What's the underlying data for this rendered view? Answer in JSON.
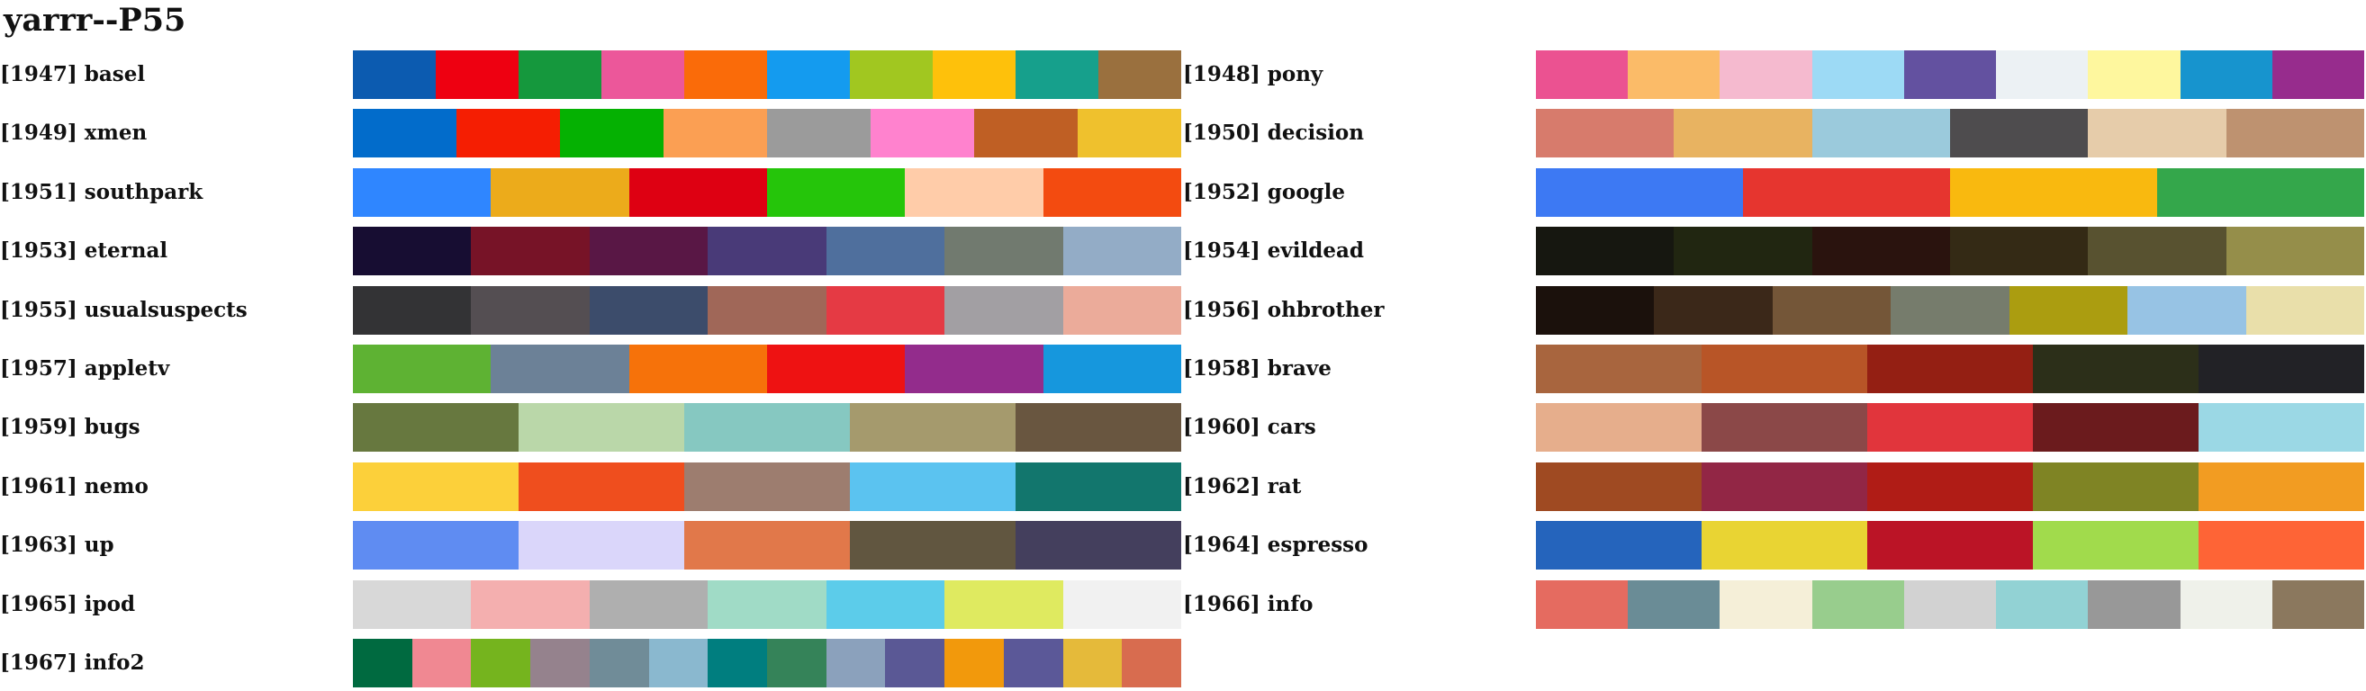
{
  "title": "yarrr--P55",
  "palettes": [
    {
      "label": "[1947] basel",
      "colors": [
        "#0C5BB0",
        "#EE0011",
        "#15983D",
        "#EC579A",
        "#FA6B09",
        "#149BEF",
        "#A1C720",
        "#FEC10B",
        "#16A08C",
        "#9A703E"
      ]
    },
    {
      "label": "[1948] pony",
      "colors": [
        "#EB5291",
        "#FBBB68",
        "#F5BACF",
        "#9DDAF5",
        "#6351A0",
        "#ECF1F4",
        "#FEF79E",
        "#1794CE",
        "#972C8D"
      ]
    },
    {
      "label": "[1949] xmen",
      "colors": [
        "#026CCB",
        "#F51E02",
        "#05B102",
        "#FB9F53",
        "#9B9B9B",
        "#FF82CE",
        "#BF5F24",
        "#EFC12D"
      ]
    },
    {
      "label": "[1950] decision",
      "colors": [
        "#D77B6C",
        "#E8B361",
        "#9BCADC",
        "#4E4C4E",
        "#E6CCAA",
        "#BE9270"
      ]
    },
    {
      "label": "[1951] southpark",
      "colors": [
        "#2F86FF",
        "#ECAB1B",
        "#DE0012",
        "#25C50A",
        "#FFCCA9",
        "#F34B10"
      ]
    },
    {
      "label": "[1952] google",
      "colors": [
        "#3D79F3",
        "#E6352F",
        "#F9B90F",
        "#34A74B"
      ]
    },
    {
      "label": "[1953] eternal",
      "colors": [
        "#170D32",
        "#771327",
        "#591745",
        "#493A78",
        "#4F6F9D",
        "#717A6F",
        "#93ACC6"
      ]
    },
    {
      "label": "[1954] evildead",
      "colors": [
        "#161710",
        "#212611",
        "#2A130E",
        "#342A15",
        "#585230",
        "#958E4A"
      ]
    },
    {
      "label": "[1955] usualsuspects",
      "colors": [
        "#333335",
        "#544E52",
        "#3C4C6B",
        "#A06758",
        "#E53A44",
        "#A29FA3",
        "#EBAB9A"
      ]
    },
    {
      "label": "[1956] ohbrother",
      "colors": [
        "#1B110C",
        "#3B2819",
        "#745638",
        "#767C6C",
        "#AB9D10",
        "#97C3E4",
        "#E9DFAA"
      ]
    },
    {
      "label": "[1957] appletv",
      "colors": [
        "#5EB233",
        "#6C8197",
        "#F6720A",
        "#EE1212",
        "#932C8C",
        "#1697DD"
      ]
    },
    {
      "label": "[1958] brave",
      "colors": [
        "#A8653E",
        "#B85527",
        "#941F13",
        "#2C2F19",
        "#222226"
      ]
    },
    {
      "label": "[1959] bugs",
      "colors": [
        "#67783F",
        "#BAD7A9",
        "#86C8C1",
        "#A59A6D",
        "#695640"
      ]
    },
    {
      "label": "[1960] cars",
      "colors": [
        "#E6AE8C",
        "#8B4848",
        "#E1353C",
        "#6B1B1D",
        "#9BD8E5"
      ]
    },
    {
      "label": "[1961] nemo",
      "colors": [
        "#FCD03A",
        "#EF4E1E",
        "#9D7D6F",
        "#5BC3F0",
        "#12766D"
      ]
    },
    {
      "label": "[1962] rat",
      "colors": [
        "#9F4A22",
        "#922645",
        "#B01C16",
        "#7F8424",
        "#F29C22"
      ]
    },
    {
      "label": "[1963] up",
      "colors": [
        "#5F8CF2",
        "#DAD6FA",
        "#E1784A",
        "#615640",
        "#443F5D"
      ]
    },
    {
      "label": "[1964] espresso",
      "colors": [
        "#2564BC",
        "#E9D433",
        "#BB1426",
        "#A1DB4C",
        "#FE6436"
      ]
    },
    {
      "label": "[1965] ipod",
      "colors": [
        "#D8D8D8",
        "#F4AFAF",
        "#AFAFAF",
        "#A0DBC6",
        "#5CCCEA",
        "#DFEA60",
        "#F1F1F1"
      ]
    },
    {
      "label": "[1966] info",
      "colors": [
        "#E56B60",
        "#6A8C96",
        "#F5EFD8",
        "#98CD8D",
        "#D2D2D2",
        "#92D2D4",
        "#989898",
        "#EFF1EA",
        "#8B785E"
      ]
    },
    {
      "label": "[1967] info2",
      "colors": [
        "#006A40",
        "#F08892",
        "#75B41E",
        "#95828D",
        "#708C98",
        "#8AB8CF",
        "#007E7F",
        "#358359",
        "#8BA1BC",
        "#5A5895",
        "#F2990C",
        "#5B5898",
        "#E5BA3A",
        "#D86C4F"
      ]
    }
  ]
}
